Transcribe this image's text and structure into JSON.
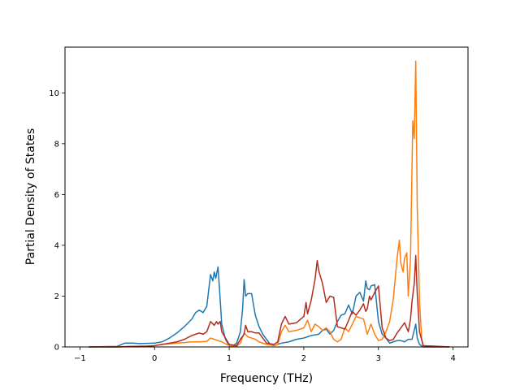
{
  "chart_data": {
    "type": "line",
    "xlabel": "Frequency (THz)",
    "ylabel": "Partial Density of States",
    "xlim": [
      -1.2,
      4.2
    ],
    "ylim": [
      0,
      11.8
    ],
    "xticks": [
      -1,
      0,
      1,
      2,
      3,
      4
    ],
    "yticks": [
      0,
      2,
      4,
      6,
      8,
      10
    ],
    "grid": false,
    "series": [
      {
        "color": "#1f77b4",
        "x": [
          -0.88,
          -0.5,
          -0.4,
          -0.3,
          -0.2,
          -0.1,
          0,
          0.1,
          0.2,
          0.3,
          0.4,
          0.5,
          0.55,
          0.6,
          0.65,
          0.7,
          0.75,
          0.78,
          0.8,
          0.82,
          0.85,
          0.87,
          0.9,
          0.95,
          1.0,
          1.05,
          1.1,
          1.15,
          1.18,
          1.2,
          1.22,
          1.25,
          1.3,
          1.35,
          1.4,
          1.45,
          1.5,
          1.55,
          1.6,
          1.7,
          1.8,
          1.9,
          2.0,
          2.1,
          2.2,
          2.25,
          2.3,
          2.35,
          2.4,
          2.45,
          2.5,
          2.55,
          2.6,
          2.65,
          2.7,
          2.75,
          2.8,
          2.83,
          2.85,
          2.88,
          2.9,
          2.95,
          3.0,
          3.05,
          3.1,
          3.15,
          3.2,
          3.25,
          3.3,
          3.35,
          3.4,
          3.45,
          3.5,
          3.52,
          3.55,
          3.6,
          3.95
        ],
        "y": [
          0,
          0.02,
          0.15,
          0.15,
          0.13,
          0.14,
          0.15,
          0.2,
          0.35,
          0.55,
          0.8,
          1.1,
          1.35,
          1.45,
          1.35,
          1.6,
          2.85,
          2.6,
          2.95,
          2.7,
          3.15,
          2.3,
          0.9,
          0.3,
          0.05,
          0.05,
          0.15,
          0.6,
          1.5,
          2.65,
          2.0,
          2.1,
          2.1,
          1.25,
          0.8,
          0.5,
          0.3,
          0.1,
          0.05,
          0.15,
          0.2,
          0.3,
          0.35,
          0.45,
          0.5,
          0.65,
          0.7,
          0.5,
          0.65,
          1.0,
          1.25,
          1.3,
          1.65,
          1.3,
          2.0,
          2.15,
          1.8,
          2.6,
          2.3,
          2.25,
          2.4,
          2.45,
          1.0,
          0.5,
          0.35,
          0.15,
          0.2,
          0.25,
          0.25,
          0.2,
          0.3,
          0.3,
          0.9,
          0.35,
          0.1,
          0,
          0
        ]
      },
      {
        "color": "#ff7f0e",
        "x": [
          -0.88,
          -0.5,
          -0.3,
          -0.1,
          0,
          0.1,
          0.2,
          0.3,
          0.4,
          0.5,
          0.6,
          0.7,
          0.75,
          0.8,
          0.85,
          0.9,
          1.0,
          1.1,
          1.15,
          1.2,
          1.25,
          1.3,
          1.35,
          1.4,
          1.5,
          1.6,
          1.65,
          1.7,
          1.75,
          1.8,
          1.9,
          2.0,
          2.05,
          2.1,
          2.15,
          2.2,
          2.25,
          2.3,
          2.35,
          2.4,
          2.45,
          2.5,
          2.55,
          2.6,
          2.65,
          2.7,
          2.75,
          2.8,
          2.85,
          2.9,
          2.95,
          3.0,
          3.05,
          3.1,
          3.15,
          3.2,
          3.25,
          3.28,
          3.3,
          3.33,
          3.35,
          3.38,
          3.4,
          3.43,
          3.46,
          3.48,
          3.5,
          3.52,
          3.55,
          3.58,
          3.6,
          3.95
        ],
        "y": [
          0,
          0,
          0.02,
          0.03,
          0.05,
          0.1,
          0.12,
          0.15,
          0.17,
          0.2,
          0.2,
          0.22,
          0.35,
          0.3,
          0.25,
          0.2,
          0.05,
          0.03,
          0.15,
          0.55,
          0.4,
          0.35,
          0.3,
          0.2,
          0.1,
          0.05,
          0.1,
          0.6,
          0.85,
          0.6,
          0.65,
          0.75,
          1.05,
          0.6,
          0.9,
          0.8,
          0.65,
          0.75,
          0.6,
          0.3,
          0.2,
          0.3,
          0.75,
          0.6,
          0.9,
          1.2,
          1.15,
          1.1,
          0.5,
          0.9,
          0.5,
          0.25,
          0.3,
          0.6,
          1.0,
          1.9,
          3.5,
          4.2,
          3.3,
          2.95,
          3.5,
          3.7,
          2.0,
          3.5,
          8.9,
          8.2,
          11.25,
          5.5,
          1.8,
          0.3,
          0.05,
          0
        ]
      },
      {
        "color": "#b22d1f",
        "x": [
          -0.88,
          -0.5,
          -0.3,
          -0.1,
          0,
          0.1,
          0.2,
          0.3,
          0.4,
          0.5,
          0.55,
          0.6,
          0.65,
          0.7,
          0.75,
          0.8,
          0.83,
          0.85,
          0.88,
          0.9,
          1.0,
          1.1,
          1.15,
          1.2,
          1.22,
          1.25,
          1.3,
          1.35,
          1.4,
          1.45,
          1.5,
          1.6,
          1.65,
          1.7,
          1.75,
          1.8,
          1.9,
          2.0,
          2.03,
          2.05,
          2.1,
          2.15,
          2.18,
          2.2,
          2.25,
          2.3,
          2.35,
          2.4,
          2.45,
          2.5,
          2.55,
          2.6,
          2.65,
          2.7,
          2.75,
          2.8,
          2.83,
          2.85,
          2.88,
          2.9,
          2.95,
          3.0,
          3.05,
          3.1,
          3.15,
          3.2,
          3.25,
          3.3,
          3.35,
          3.4,
          3.43,
          3.45,
          3.48,
          3.5,
          3.52,
          3.55,
          3.6,
          3.95
        ],
        "y": [
          0,
          0,
          0.02,
          0.03,
          0.05,
          0.1,
          0.15,
          0.2,
          0.3,
          0.45,
          0.5,
          0.55,
          0.5,
          0.6,
          1.0,
          0.85,
          1.0,
          0.9,
          1.0,
          0.6,
          0.1,
          0.05,
          0.3,
          0.5,
          0.85,
          0.6,
          0.6,
          0.55,
          0.55,
          0.35,
          0.15,
          0.1,
          0.2,
          0.9,
          1.2,
          0.9,
          0.95,
          1.2,
          1.75,
          1.3,
          1.85,
          2.65,
          3.4,
          3.0,
          2.5,
          1.75,
          2.0,
          1.95,
          0.8,
          0.75,
          0.7,
          1.05,
          1.4,
          1.25,
          1.45,
          1.7,
          1.4,
          1.5,
          2.0,
          1.85,
          2.15,
          2.4,
          0.75,
          0.35,
          0.25,
          0.3,
          0.55,
          0.75,
          0.95,
          0.6,
          1.1,
          1.8,
          2.5,
          3.6,
          2.1,
          0.6,
          0.05,
          0
        ]
      }
    ]
  }
}
